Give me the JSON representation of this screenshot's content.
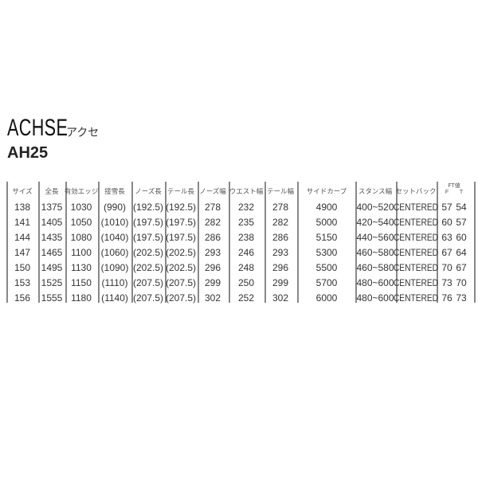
{
  "title": "ACHSE",
  "title_kana": "アクセ",
  "model": "AH25",
  "table": {
    "headers": [
      "サイズ",
      "全長",
      "有効エッジ",
      "接雪長",
      "ノーズ長",
      "テール長",
      "ノーズ幅",
      "ウエスト幅",
      "テール幅",
      "サイドカーブ",
      "スタンス幅",
      "セットバック",
      "FT値"
    ],
    "ft_sub": [
      "F",
      "T"
    ],
    "rows": [
      [
        "138",
        "1375",
        "1030",
        "(990)",
        "(192.5)",
        "(192.5)",
        "278",
        "232",
        "278",
        "4900",
        "400~520",
        "CENTERED",
        "57",
        "54"
      ],
      [
        "141",
        "1405",
        "1050",
        "(1010)",
        "(197.5)",
        "(197.5)",
        "282",
        "235",
        "282",
        "5000",
        "420~540",
        "CENTERED",
        "60",
        "57"
      ],
      [
        "144",
        "1435",
        "1080",
        "(1040)",
        "(197.5)",
        "(197.5)",
        "286",
        "238",
        "286",
        "5150",
        "440~560",
        "CENTERED",
        "63",
        "60"
      ],
      [
        "147",
        "1465",
        "1100",
        "(1060)",
        "(202.5)",
        "(202.5)",
        "293",
        "246",
        "293",
        "5300",
        "460~580",
        "CENTERED",
        "67",
        "64"
      ],
      [
        "150",
        "1495",
        "1130",
        "(1090)",
        "(202.5)",
        "(202.5)",
        "296",
        "248",
        "296",
        "5500",
        "460~580",
        "CENTERED",
        "70",
        "67"
      ],
      [
        "153",
        "1525",
        "1150",
        "(1110)",
        "(207.5)",
        "(207.5)",
        "299",
        "250",
        "299",
        "5700",
        "480~600",
        "CENTERED",
        "73",
        "70"
      ],
      [
        "156",
        "1555",
        "1180",
        "(1140)",
        "(207.5)",
        "(207.5)",
        "302",
        "252",
        "302",
        "6000",
        "480~600",
        "CENTERED",
        "76",
        "73"
      ]
    ]
  }
}
